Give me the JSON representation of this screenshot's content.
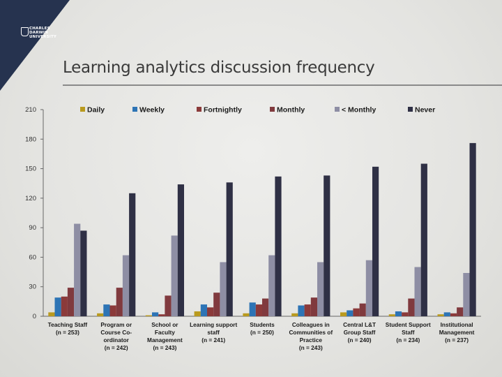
{
  "brand": {
    "line1": "CHARLES",
    "line2": "DARWIN",
    "line3": "UNIVERSITY"
  },
  "slide": {
    "title": "Learning analytics discussion frequency"
  },
  "colors": {
    "corner": "#26334f",
    "series": [
      "#b99a1f",
      "#2d74b5",
      "#8b3a3a",
      "#803a3e",
      "#8e8ea4",
      "#2f3045"
    ],
    "axis": "#555555",
    "text": "#1a1a1a"
  },
  "chart_data": {
    "type": "bar",
    "title": "",
    "xlabel": "",
    "ylabel": "",
    "ylim": [
      0,
      210
    ],
    "yticks": [
      0,
      30,
      60,
      90,
      120,
      150,
      180,
      210
    ],
    "legend_position": "top",
    "categories": [
      [
        "Teaching Staff",
        "(n = 253)"
      ],
      [
        "Program or",
        "Course Co-",
        "ordinator",
        "(n = 242)"
      ],
      [
        "School or",
        "Faculty",
        "Management",
        "(n = 243)"
      ],
      [
        "Learning support",
        "staff",
        "(n = 241)"
      ],
      [
        "Students",
        "(n = 250)"
      ],
      [
        "Colleagues in",
        "Communities of",
        "Practice",
        "(n = 243)"
      ],
      [
        "Central L&T",
        "Group Staff",
        "(n = 240)"
      ],
      [
        "Student Support",
        "Staff",
        "(n = 234)"
      ],
      [
        "Institutional",
        "Management",
        "(n = 237)"
      ]
    ],
    "series": [
      {
        "name": "Daily",
        "values": [
          4,
          3,
          1,
          5,
          3,
          3,
          4,
          2,
          2
        ]
      },
      {
        "name": "Weekly",
        "values": [
          19,
          12,
          4,
          12,
          14,
          11,
          6,
          5,
          4
        ]
      },
      {
        "name": "Fortnightly",
        "values": [
          20,
          11,
          2,
          9,
          12,
          12,
          8,
          4,
          3
        ]
      },
      {
        "name": "Monthly",
        "values": [
          29,
          29,
          21,
          24,
          18,
          19,
          13,
          18,
          9
        ]
      },
      {
        "name": "< Monthly",
        "values": [
          94,
          62,
          82,
          55,
          62,
          55,
          57,
          50,
          44
        ]
      },
      {
        "name": "Never",
        "values": [
          87,
          125,
          134,
          136,
          142,
          143,
          152,
          155,
          176
        ]
      }
    ]
  }
}
